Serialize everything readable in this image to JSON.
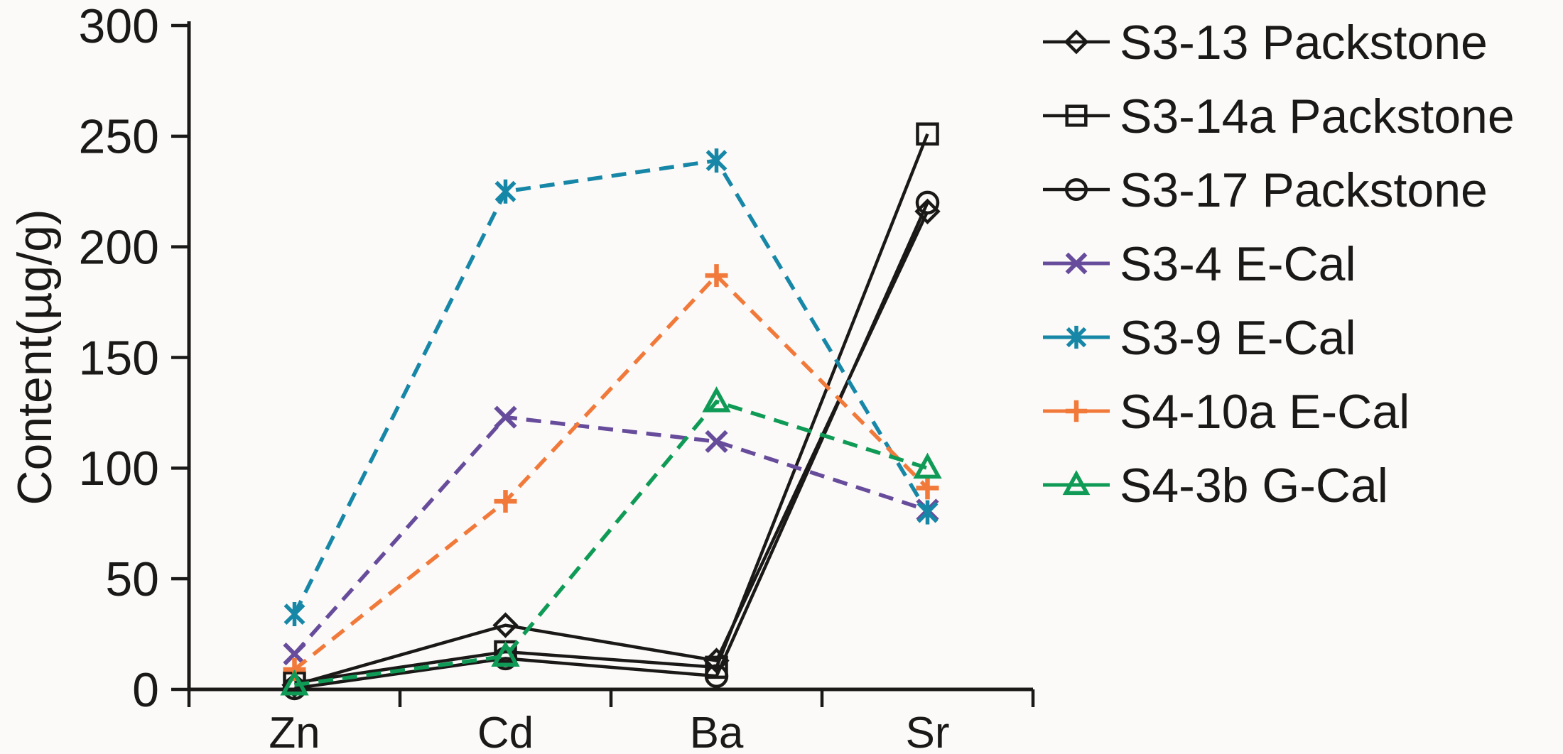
{
  "figure": {
    "background": "#fbfaf8",
    "axis_color": "#1b1918",
    "text_color": "#1b1918"
  },
  "chart_data": {
    "type": "line",
    "title": "",
    "xlabel": "",
    "ylabel": "Content(µg/g)",
    "categories": [
      "Zn",
      "Cd",
      "Ba",
      "Sr"
    ],
    "ylim": [
      0,
      300
    ],
    "yticks": [
      0,
      50,
      100,
      150,
      200,
      250,
      300
    ],
    "grid": false,
    "legend_position": "right",
    "series": [
      {
        "name": "S3-13 Packstone",
        "marker": "diamond",
        "color": "#1b1918",
        "line": "solid",
        "values": [
          2,
          29,
          13,
          216
        ]
      },
      {
        "name": "S3-14a Packstone",
        "marker": "square",
        "color": "#1b1918",
        "line": "solid",
        "values": [
          3,
          17,
          10,
          251
        ]
      },
      {
        "name": "S3-17 Packstone",
        "marker": "circle",
        "color": "#1b1918",
        "line": "solid",
        "values": [
          0.5,
          14,
          6,
          220
        ]
      },
      {
        "name": "S3-4 E-Cal",
        "marker": "x",
        "color": "#674c9b",
        "line": "dashed",
        "values": [
          16,
          123,
          112,
          81
        ]
      },
      {
        "name": "S3-9 E-Cal",
        "marker": "asterisk",
        "color": "#1787a8",
        "line": "dashed",
        "values": [
          34,
          225,
          239,
          80
        ]
      },
      {
        "name": "S4-10a E-Cal",
        "marker": "plus",
        "color": "#f1793a",
        "line": "dashed",
        "values": [
          9,
          85,
          187,
          91
        ]
      },
      {
        "name": "S4-3b G-Cal",
        "marker": "triangle",
        "color": "#0f9b56",
        "line": "dashed",
        "values": [
          2,
          15,
          130,
          100
        ]
      }
    ]
  }
}
